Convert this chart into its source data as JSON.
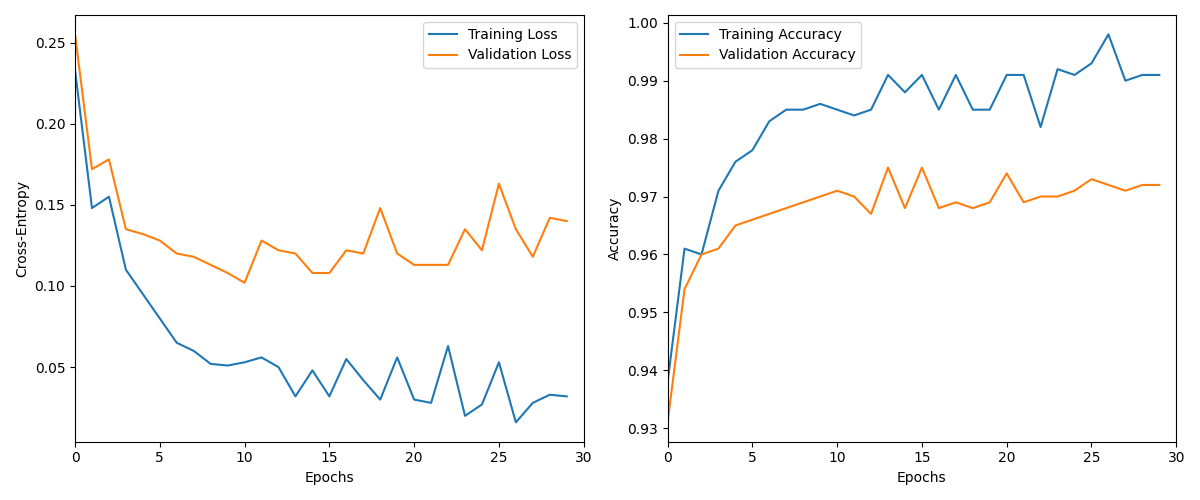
{
  "train_loss": [
    0.233,
    0.148,
    0.155,
    0.11,
    0.095,
    0.08,
    0.065,
    0.06,
    0.052,
    0.051,
    0.053,
    0.056,
    0.05,
    0.032,
    0.048,
    0.032,
    0.055,
    0.042,
    0.03,
    0.056,
    0.03,
    0.028,
    0.063,
    0.02,
    0.027,
    0.053,
    0.016,
    0.028,
    0.033,
    0.032
  ],
  "val_loss": [
    0.255,
    0.172,
    0.178,
    0.135,
    0.132,
    0.128,
    0.12,
    0.118,
    0.113,
    0.108,
    0.102,
    0.128,
    0.122,
    0.12,
    0.108,
    0.108,
    0.122,
    0.12,
    0.148,
    0.12,
    0.113,
    0.113,
    0.113,
    0.135,
    0.122,
    0.163,
    0.135,
    0.118,
    0.142,
    0.14
  ],
  "train_acc": [
    0.938,
    0.961,
    0.96,
    0.971,
    0.976,
    0.978,
    0.983,
    0.985,
    0.985,
    0.986,
    0.985,
    0.984,
    0.985,
    0.991,
    0.988,
    0.991,
    0.985,
    0.991,
    0.985,
    0.985,
    0.991,
    0.991,
    0.982,
    0.992,
    0.991,
    0.993,
    0.998,
    0.99,
    0.991,
    0.991
  ],
  "val_acc": [
    0.931,
    0.954,
    0.96,
    0.961,
    0.965,
    0.966,
    0.967,
    0.968,
    0.969,
    0.97,
    0.971,
    0.97,
    0.967,
    0.975,
    0.968,
    0.975,
    0.968,
    0.969,
    0.968,
    0.969,
    0.974,
    0.969,
    0.97,
    0.97,
    0.971,
    0.973,
    0.972,
    0.971,
    0.972,
    0.972
  ],
  "color_blue": "#1f77b4",
  "color_orange": "#ff7f0e",
  "xlabel": "Epochs",
  "ylabel_loss": "Cross-Entropy",
  "ylabel_acc": "Accuracy",
  "legend_loss": [
    "Training Loss",
    "Validation Loss"
  ],
  "legend_acc": [
    "Training Accuracy",
    "Validation Accuracy"
  ],
  "figsize": [
    12.0,
    5.0
  ],
  "dpi": 100
}
